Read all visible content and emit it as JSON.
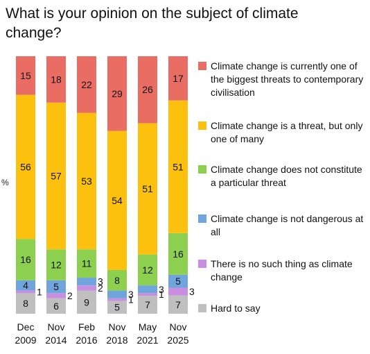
{
  "title": "What is your opinion on the subject of climate change?",
  "colors": {
    "biggest_threat": "#ea6d63",
    "one_of_many": "#fcc10e",
    "not_particular": "#8dcf4f",
    "not_dangerous": "#6fa4dc",
    "no_such_thing": "#c88fe0",
    "hard_to_say": "#bfbfbf"
  },
  "legend": [
    {
      "key": "biggest_threat",
      "label": "Climate change is currently one of the biggest threats to contemporary civilisation",
      "color": "#ea6d63"
    },
    {
      "key": "one_of_many",
      "label": "Climate change is a threat, but only one of many",
      "color": "#fcc10e"
    },
    {
      "key": "not_particular",
      "label": "Climate change does not constitute a particular threat",
      "color": "#8dcf4f"
    },
    {
      "key": "not_dangerous",
      "label": "Climate change is not dangerous at all",
      "color": "#6fa4dc"
    },
    {
      "key": "no_such_thing",
      "label": "There is no such thing as climate change",
      "color": "#c88fe0"
    },
    {
      "key": "hard_to_say",
      "label": "Hard to say",
      "color": "#bfbfbf"
    }
  ],
  "chart_data": {
    "type": "bar",
    "stacked": true,
    "title": "What is your opinion on the subject of climate change?",
    "ylabel": "%",
    "categories": [
      [
        "Dec",
        "2009"
      ],
      [
        "Nov",
        "2014"
      ],
      [
        "Feb",
        "2016"
      ],
      [
        "Nov",
        "2018"
      ],
      [
        "May",
        "2021"
      ],
      [
        "Nov",
        "2025"
      ]
    ],
    "series": [
      {
        "name": "Hard to say",
        "color": "#bfbfbf",
        "values": [
          8,
          6,
          9,
          5,
          7,
          7
        ]
      },
      {
        "name": "There is no such thing as climate change",
        "color": "#c88fe0",
        "values": [
          1,
          2,
          2,
          1,
          1,
          3
        ]
      },
      {
        "name": "Climate change is not dangerous at all",
        "color": "#6fa4dc",
        "values": [
          4,
          5,
          3,
          3,
          3,
          5
        ]
      },
      {
        "name": "Climate change does not constitute a particular threat",
        "color": "#8dcf4f",
        "values": [
          16,
          12,
          11,
          8,
          12,
          16
        ]
      },
      {
        "name": "Climate change is a threat, but only one of many",
        "color": "#fcc10e",
        "values": [
          56,
          57,
          53,
          54,
          51,
          51
        ]
      },
      {
        "name": "Climate change is currently one of the biggest threats to contemporary civilisation",
        "color": "#ea6d63",
        "values": [
          15,
          18,
          22,
          29,
          26,
          17
        ]
      }
    ],
    "ylim": [
      0,
      100
    ],
    "legend_position": "right",
    "grid": false
  }
}
